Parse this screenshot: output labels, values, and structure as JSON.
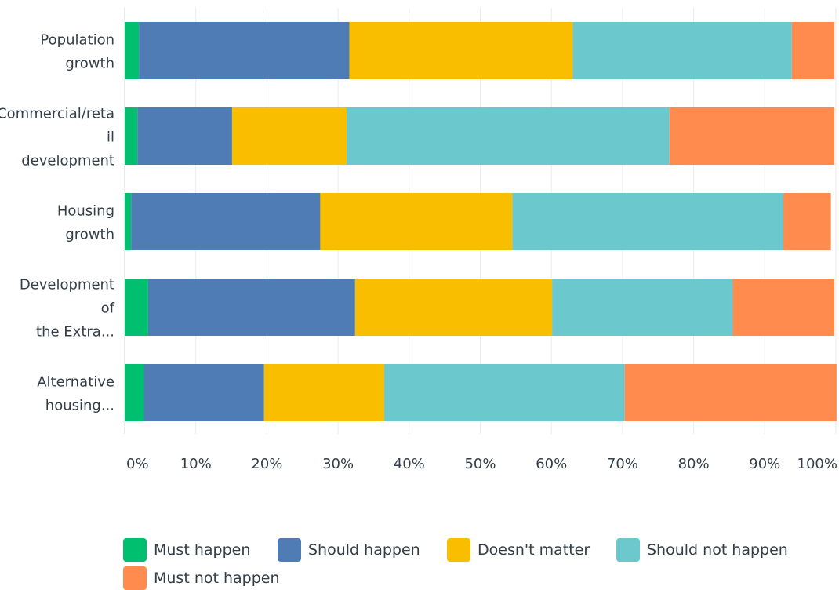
{
  "chart_data": {
    "type": "bar",
    "orientation": "horizontal",
    "stacked": true,
    "categories": [
      [
        "Population",
        "growth"
      ],
      [
        "Commercial/reta",
        "il",
        "development"
      ],
      [
        "Housing",
        "growth"
      ],
      [
        "Development",
        "of",
        "the Extra..."
      ],
      [
        "Alternative",
        "housing..."
      ]
    ],
    "series": [
      {
        "name": "Must happen",
        "color": "#00bf6f",
        "values": [
          2.0,
          1.8,
          0.9,
          3.3,
          2.7
        ]
      },
      {
        "name": "Should happen",
        "color": "#507cb6",
        "values": [
          29.6,
          13.3,
          26.6,
          29.1,
          16.9
        ]
      },
      {
        "name": "Doesn't matter",
        "color": "#f9be00",
        "values": [
          31.4,
          16.1,
          27.0,
          27.7,
          16.9
        ]
      },
      {
        "name": "Should not happen",
        "color": "#6bc8cd",
        "values": [
          30.8,
          45.4,
          38.1,
          25.4,
          33.8
        ]
      },
      {
        "name": "Must not happen",
        "color": "#ff8b4f",
        "values": [
          6.0,
          23.2,
          6.7,
          14.3,
          29.8
        ]
      }
    ],
    "xlim": [
      0,
      100
    ],
    "xticks": [
      "0%",
      "10%",
      "20%",
      "30%",
      "40%",
      "50%",
      "60%",
      "70%",
      "80%",
      "90%",
      "100%"
    ],
    "grid": true,
    "legend_position": "bottom"
  }
}
